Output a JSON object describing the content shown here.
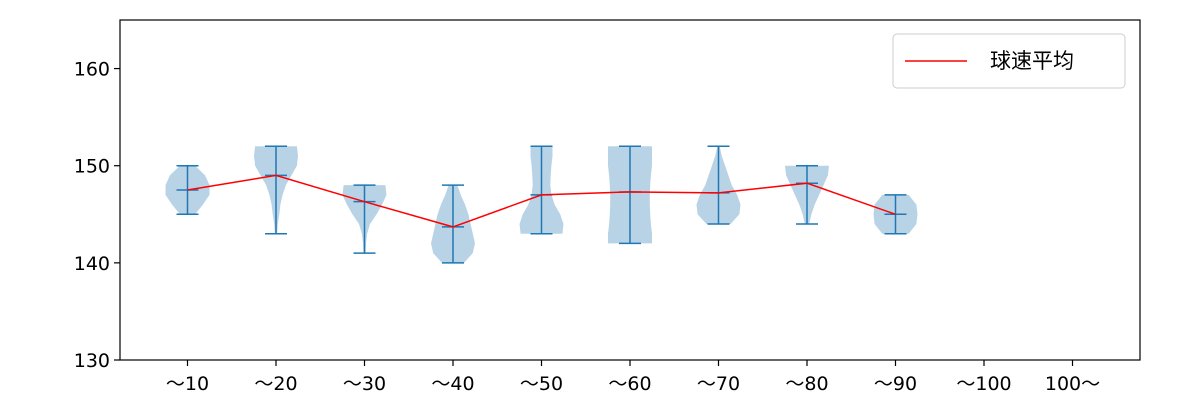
{
  "chart_data": {
    "type": "violin",
    "title": "",
    "xlabel": "",
    "ylabel": "",
    "categories": [
      "〜10",
      "〜20",
      "〜30",
      "〜40",
      "〜50",
      "〜60",
      "〜70",
      "〜80",
      "〜90",
      "〜100",
      "100〜"
    ],
    "ylim": [
      130,
      165
    ],
    "yticks": [
      130,
      140,
      150,
      160
    ],
    "grid": false,
    "legend": {
      "position": "upper right",
      "entries": [
        {
          "label": "球速平均",
          "color": "#ff0000"
        }
      ]
    },
    "colors": {
      "violin_fill": "#a6c8e0",
      "whisker": "#1f77b4",
      "mean_line": "#ff0000"
    },
    "distributions": [
      {
        "category": "〜10",
        "min": 145,
        "max": 150,
        "mean": 147.5,
        "density": [
          [
            145,
            0.35
          ],
          [
            146,
            0.7
          ],
          [
            147,
            1.0
          ],
          [
            148,
            1.0
          ],
          [
            149,
            0.8
          ],
          [
            150,
            0.35
          ]
        ]
      },
      {
        "category": "〜20",
        "min": 143,
        "max": 152,
        "mean": 149,
        "density": [
          [
            143,
            0.05
          ],
          [
            144,
            0.08
          ],
          [
            145,
            0.15
          ],
          [
            146,
            0.2
          ],
          [
            147,
            0.3
          ],
          [
            148,
            0.45
          ],
          [
            149,
            0.7
          ],
          [
            150,
            0.95
          ],
          [
            151,
            1.0
          ],
          [
            152,
            0.95
          ]
        ]
      },
      {
        "category": "〜30",
        "min": 141,
        "max": 148,
        "mean": 146.3,
        "density": [
          [
            141,
            0.05
          ],
          [
            142,
            0.07
          ],
          [
            143,
            0.12
          ],
          [
            144,
            0.25
          ],
          [
            145,
            0.55
          ],
          [
            146,
            0.8
          ],
          [
            147,
            1.0
          ],
          [
            148,
            0.95
          ]
        ]
      },
      {
        "category": "〜40",
        "min": 140,
        "max": 148,
        "mean": 143.7,
        "density": [
          [
            140,
            0.5
          ],
          [
            141,
            0.9
          ],
          [
            142,
            1.0
          ],
          [
            143,
            0.9
          ],
          [
            144,
            0.8
          ],
          [
            145,
            0.7
          ],
          [
            146,
            0.55
          ],
          [
            147,
            0.35
          ],
          [
            148,
            0.2
          ]
        ]
      },
      {
        "category": "〜50",
        "min": 143,
        "max": 152,
        "mean": 147,
        "density": [
          [
            143,
            0.95
          ],
          [
            144,
            1.0
          ],
          [
            145,
            0.85
          ],
          [
            146,
            0.6
          ],
          [
            147,
            0.45
          ],
          [
            148,
            0.4
          ],
          [
            149,
            0.42
          ],
          [
            150,
            0.45
          ],
          [
            151,
            0.5
          ],
          [
            152,
            0.5
          ]
        ]
      },
      {
        "category": "〜60",
        "min": 142,
        "max": 152,
        "mean": 147.3,
        "density": [
          [
            142,
            1.0
          ],
          [
            143,
            1.0
          ],
          [
            144,
            0.95
          ],
          [
            145,
            0.92
          ],
          [
            146,
            0.9
          ],
          [
            147,
            0.9
          ],
          [
            148,
            0.92
          ],
          [
            149,
            0.95
          ],
          [
            150,
            1.0
          ],
          [
            151,
            1.0
          ],
          [
            152,
            1.0
          ]
        ]
      },
      {
        "category": "〜70",
        "min": 144,
        "max": 152,
        "mean": 147.2,
        "density": [
          [
            144,
            0.55
          ],
          [
            145,
            0.95
          ],
          [
            146,
            1.0
          ],
          [
            147,
            0.85
          ],
          [
            148,
            0.6
          ],
          [
            149,
            0.45
          ],
          [
            150,
            0.3
          ],
          [
            151,
            0.15
          ],
          [
            152,
            0.05
          ]
        ]
      },
      {
        "category": "〜80",
        "min": 144,
        "max": 150,
        "mean": 148.2,
        "density": [
          [
            144,
            0.1
          ],
          [
            145,
            0.2
          ],
          [
            146,
            0.35
          ],
          [
            147,
            0.55
          ],
          [
            148,
            0.75
          ],
          [
            149,
            0.95
          ],
          [
            150,
            1.0
          ]
        ]
      },
      {
        "category": "〜90",
        "min": 143,
        "max": 147,
        "mean": 145,
        "density": [
          [
            143,
            0.6
          ],
          [
            144,
            0.95
          ],
          [
            145,
            1.0
          ],
          [
            146,
            0.95
          ],
          [
            147,
            0.6
          ]
        ]
      },
      {
        "category": "〜100",
        "min": null,
        "max": null,
        "mean": null,
        "density": []
      },
      {
        "category": "100〜",
        "min": null,
        "max": null,
        "mean": null,
        "density": []
      }
    ]
  }
}
